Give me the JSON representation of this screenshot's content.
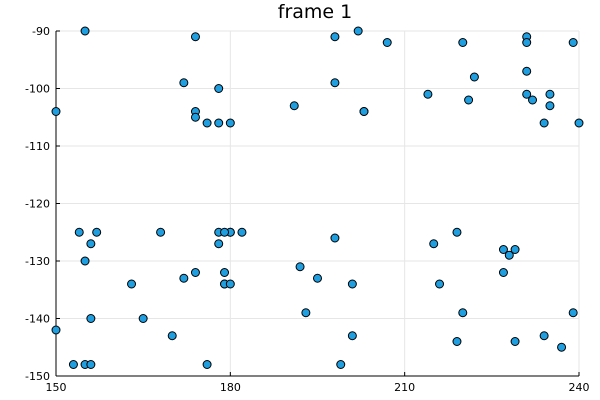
{
  "chart_data": {
    "type": "scatter",
    "title": "frame 1",
    "xlabel": "",
    "ylabel": "",
    "xlim": [
      150,
      240
    ],
    "ylim": [
      -150,
      -90
    ],
    "xticks": [
      150,
      180,
      210,
      240
    ],
    "xtick_labels": [
      "150",
      "180",
      "210",
      "240"
    ],
    "yticks": [
      -150,
      -140,
      -130,
      -120,
      -110,
      -100,
      -90
    ],
    "ytick_labels": [
      "-150",
      "-140",
      "-130",
      "-120",
      "-110",
      "-100",
      "-90"
    ],
    "grid": true,
    "legend": "none",
    "marker_color": "#1f9ee0",
    "series": [
      {
        "x": [
          150,
          155,
          150,
          154,
          155,
          156,
          157,
          153,
          155,
          156,
          156,
          163,
          165,
          168,
          170,
          172,
          172,
          174,
          174,
          174,
          174,
          176,
          176,
          178,
          178,
          178,
          178,
          179,
          180,
          182,
          179,
          179,
          180,
          180,
          180,
          179,
          191,
          192,
          193,
          195,
          198,
          198,
          198,
          199,
          201,
          201,
          202,
          203,
          203,
          207,
          214,
          215,
          216,
          219,
          219,
          220,
          220,
          221,
          222,
          227,
          227,
          228,
          229,
          229,
          231,
          231,
          231,
          231,
          232,
          234,
          234,
          235,
          235,
          237,
          239,
          239,
          240
        ],
        "y": [
          -104,
          -90,
          -142,
          -125,
          -130,
          -127,
          -125,
          -148,
          -148,
          -148,
          -140,
          -134,
          -140,
          -125,
          -143,
          -133,
          -99,
          -91,
          -104,
          -105,
          -132,
          -106,
          -148,
          -106,
          -100,
          -125,
          -127,
          -134,
          -125,
          -125,
          -132,
          -134,
          -134,
          -125,
          -106,
          -125,
          -103,
          -131,
          -139,
          -133,
          -91,
          -99,
          -126,
          -148,
          -143,
          -134,
          -90,
          -104,
          -104,
          -92,
          -101,
          -127,
          -134,
          -144,
          -125,
          -92,
          -139,
          -102,
          -98,
          -132,
          -128,
          -129,
          -128,
          -144,
          -91,
          -92,
          -97,
          -101,
          -102,
          -106,
          -143,
          -101,
          -103,
          -145,
          -92,
          -139,
          -106
        ]
      }
    ]
  }
}
